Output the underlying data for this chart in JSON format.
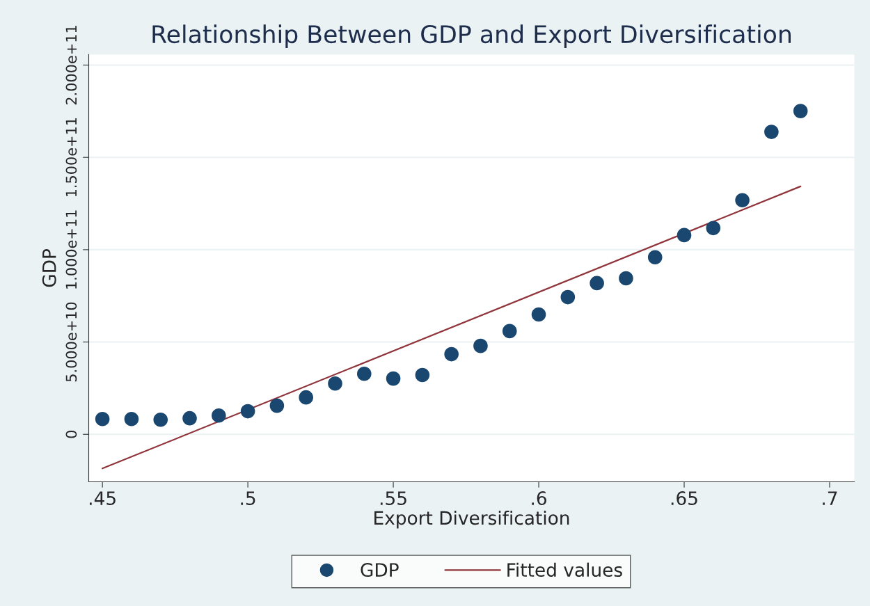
{
  "chart_data": {
    "type": "scatter",
    "title": "Relationship Between GDP and Export Diversification",
    "xlabel": "Export Diversification",
    "ylabel": "GDP",
    "series": [
      {
        "name": "GDP",
        "marker": "circle",
        "color": "#1a476f",
        "x": [
          0.45,
          0.46,
          0.47,
          0.48,
          0.49,
          0.5,
          0.51,
          0.52,
          0.53,
          0.54,
          0.55,
          0.56,
          0.57,
          0.58,
          0.59,
          0.6,
          0.61,
          0.62,
          0.63,
          0.64,
          0.65,
          0.66,
          0.67,
          0.68,
          0.69
        ],
        "values": [
          8300000000.0,
          8300000000.0,
          7900000000.0,
          8700000000.0,
          10200000000.0,
          12500000000.0,
          15500000000.0,
          20000000000.0,
          27500000000.0,
          32800000000.0,
          30200000000.0,
          32100000000.0,
          43400000000.0,
          47900000000.0,
          55900000000.0,
          64900000000.0,
          74300000000.0,
          81900000000.0,
          84500000000.0,
          95900000000.0,
          107900000000.0,
          111700000000.0,
          126800000000.0,
          163800000000.0,
          175100000000.0
        ]
      },
      {
        "name": "Fitted values",
        "type": "line",
        "color": "#90353b",
        "x": [
          0.45,
          0.69
        ],
        "values": [
          -18500000000.0,
          134300000000.0
        ]
      }
    ],
    "xlim": [
      0.4453,
      0.7085
    ],
    "ylim": [
      -25700000000.0,
      205700000000.0
    ],
    "xticks": [
      {
        "value": 0.45,
        "label": ".45"
      },
      {
        "value": 0.5,
        "label": ".5"
      },
      {
        "value": 0.55,
        "label": ".55"
      },
      {
        "value": 0.6,
        "label": ".6"
      },
      {
        "value": 0.65,
        "label": ".65"
      },
      {
        "value": 0.7,
        "label": ".7"
      }
    ],
    "yticks": [
      {
        "value": 0,
        "label": "0"
      },
      {
        "value": 50000000000.0,
        "label": "5.000e+10"
      },
      {
        "value": 100000000000.0,
        "label": "1.000e+11"
      },
      {
        "value": 150000000000.0,
        "label": "1.500e+11"
      },
      {
        "value": 200000000000.0,
        "label": "2.000e+11"
      }
    ],
    "grid": "y",
    "legend": "bottom",
    "line_style": "solid"
  }
}
